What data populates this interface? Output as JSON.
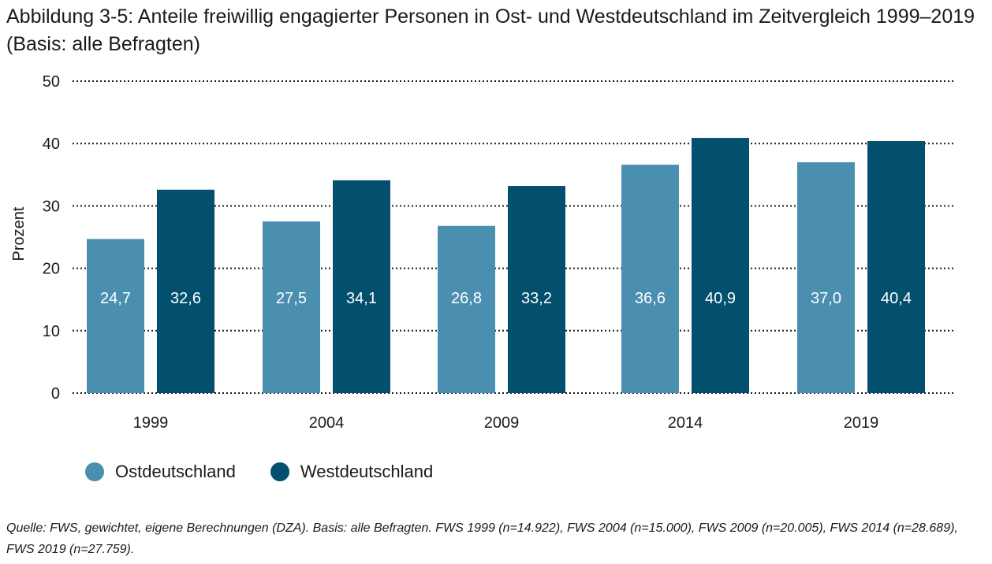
{
  "title": "Abbildung 3-5: Anteile freiwillig engagierter Personen in Ost- und Westdeutschland im Zeitvergleich 1999–2019 (Basis: alle Befragten)",
  "source": "Quelle: FWS, gewichtet, eigene Berechnungen (DZA). Basis: alle Befragten. FWS 1999 (n=14.922), FWS 2004 (n=15.000), FWS 2009 (n=20.005), FWS 2014 (n=28.689), FWS 2019 (n=27.759).",
  "chart_data": {
    "type": "bar",
    "title": "Abbildung 3-5: Anteile freiwillig engagierter Personen in Ost- und Westdeutschland im Zeitvergleich 1999–2019 (Basis: alle Befragten)",
    "xlabel": "",
    "ylabel": "Prozent",
    "categories": [
      "1999",
      "2004",
      "2009",
      "2014",
      "2019"
    ],
    "series": [
      {
        "name": "Ostdeutschland",
        "color": "#4a8fb0",
        "values": [
          24.7,
          27.5,
          26.8,
          36.6,
          37.0
        ],
        "labels": [
          "24,7",
          "27,5",
          "26,8",
          "36,6",
          "37,0"
        ]
      },
      {
        "name": "Westdeutschland",
        "color": "#034f6e",
        "values": [
          32.6,
          34.1,
          33.2,
          40.9,
          40.4
        ],
        "labels": [
          "32,6",
          "34,1",
          "33,2",
          "40,9",
          "40,4"
        ]
      }
    ],
    "ylim": [
      0,
      50
    ],
    "yticks": [
      "0",
      "10",
      "20",
      "30",
      "40",
      "50"
    ],
    "grid": "dotted horizontal",
    "legend": "bottom-left"
  }
}
